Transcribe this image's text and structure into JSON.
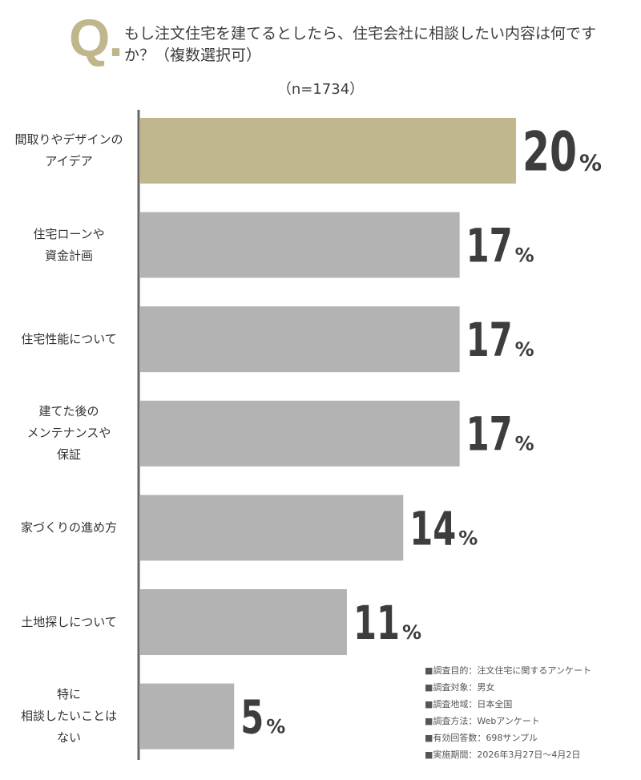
{
  "header": {
    "q_letter": "Q",
    "q_dot": ".",
    "question": "もし注文住宅を建てるとしたら、住宅会社に相談したい内容は何ですか？（複数選択可）",
    "sample_size": "（n=1734）"
  },
  "chart_data": {
    "type": "bar",
    "orientation": "horizontal",
    "categories": [
      "間取りやデザインの\nアイデア",
      "住宅ローンや\n資金計画",
      "住宅性能について",
      "建てた後の\nメンテナンスや\n保証",
      "家づくりの進め方",
      "土地探しについて",
      "特に\n相談したいことは\nない"
    ],
    "values": [
      20,
      17,
      17,
      17,
      14,
      11,
      5
    ],
    "value_unit": "%",
    "xlim": [
      0,
      20
    ],
    "highlight_index": 0,
    "colors": {
      "highlight": "#c0b78e",
      "default": "#b3b3b3",
      "axis": "#666666",
      "value_text": "#3d3d3d"
    },
    "grid": false,
    "legend": "none"
  },
  "survey_notes": [
    "■調査目的：注文住宅に関するアンケート",
    "■調査対象：男女",
    "■調査地域：日本全国",
    "■調査方法：Webアンケート",
    "■有効回答数：698サンプル",
    "■実施期間：2026年3月27日〜4月2日"
  ]
}
